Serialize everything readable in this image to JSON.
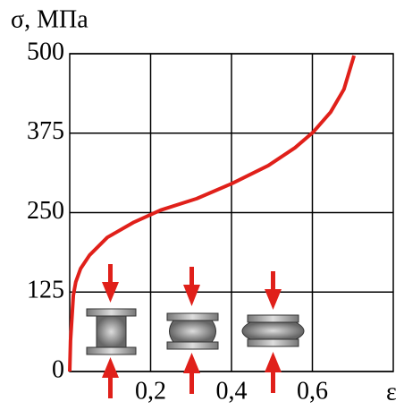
{
  "chart_data": {
    "type": "line",
    "title": "σ, МПа",
    "x_label": "ε",
    "x": [
      0,
      0.002,
      0.009,
      0.015,
      0.027,
      0.049,
      0.093,
      0.159,
      0.225,
      0.314,
      0.402,
      0.491,
      0.557,
      0.601,
      0.645,
      0.678,
      0.703
    ],
    "values": [
      0,
      49,
      120,
      141,
      162,
      183,
      211,
      235,
      254,
      272,
      296,
      324,
      352,
      376,
      408,
      444,
      497
    ],
    "color": "#e0201a",
    "xlim": [
      0,
      0.8
    ],
    "ylim": [
      0,
      500
    ],
    "xticks": [
      {
        "value": 0.2,
        "label": "0,2"
      },
      {
        "value": 0.4,
        "label": "0,4"
      },
      {
        "value": 0.6,
        "label": "0,6"
      }
    ],
    "yticks": [
      0,
      125,
      250,
      375,
      500
    ],
    "grid": true
  }
}
